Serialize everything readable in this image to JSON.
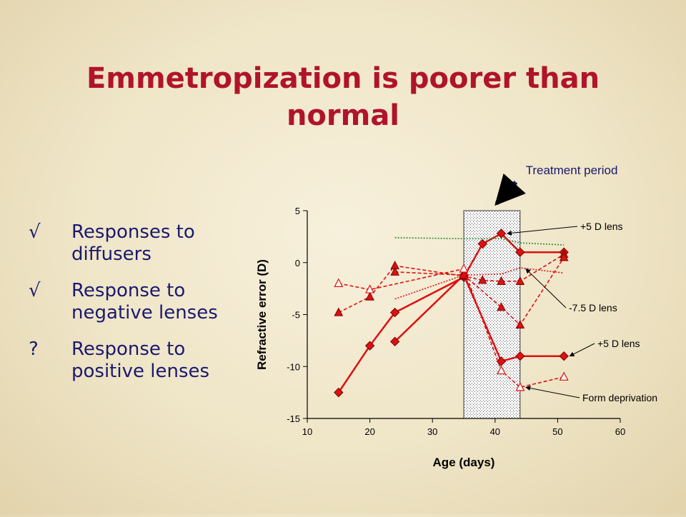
{
  "slide": {
    "title": "Emmetropization is poorer than normal",
    "bullets": [
      {
        "mark": "√",
        "text": "Responses to diffusers"
      },
      {
        "mark": "√",
        "text": "Response to negative lenses"
      },
      {
        "mark": "?",
        "text": "Response to positive lenses"
      }
    ]
  },
  "colors": {
    "title": "#b0142a",
    "bullet_text": "#1a1a6e",
    "series_red": "#dd1111",
    "series_green": "#2e8b2e",
    "treatment_fill": "#d8d8d8"
  },
  "chart_data": {
    "type": "line",
    "xlabel": "Age (days)",
    "ylabel": "Refractive error (D)",
    "xlim": [
      10,
      60
    ],
    "ylim": [
      -15,
      5
    ],
    "x_ticks": [
      10,
      20,
      30,
      40,
      50,
      60
    ],
    "y_ticks": [
      5,
      0,
      -5,
      -10,
      -15
    ],
    "treatment_period": {
      "label": "Treatment period",
      "x_start": 35,
      "x_end": 44
    },
    "annotations": [
      {
        "text": "+5 D lens",
        "points_to": [
          41,
          2.8
        ]
      },
      {
        "text": "-7.5 D lens",
        "points_to": [
          44,
          -0.6
        ]
      },
      {
        "text": "+5 D lens",
        "points_to": [
          51,
          -9
        ]
      },
      {
        "text": "Form deprivation",
        "points_to": [
          44,
          -12
        ]
      }
    ],
    "series": [
      {
        "marker": "diamond",
        "style": "solid",
        "color": "#dd1111",
        "points": [
          [
            15,
            -12.5
          ],
          [
            20,
            -8
          ],
          [
            24,
            -4.8
          ],
          [
            35,
            -1.4
          ],
          [
            38,
            1.8
          ],
          [
            41,
            2.8
          ],
          [
            44,
            1
          ],
          [
            51,
            1
          ]
        ]
      },
      {
        "marker": "diamond",
        "style": "solid",
        "color": "#dd1111",
        "points": [
          [
            24,
            -7.6
          ],
          [
            35,
            -1.2
          ],
          [
            41,
            -9.5
          ],
          [
            44,
            -9
          ],
          [
            51,
            -9
          ]
        ]
      },
      {
        "marker": "triangle-filled",
        "style": "dashed",
        "color": "#dd1111",
        "points": [
          [
            15,
            -4.8
          ],
          [
            20,
            -3.3
          ],
          [
            24,
            -0.3
          ],
          [
            35,
            -1.3
          ],
          [
            38,
            -1.7
          ],
          [
            41,
            -1.8
          ],
          [
            44,
            -1.8
          ],
          [
            51,
            0.8
          ]
        ]
      },
      {
        "marker": "triangle-filled",
        "style": "dashed",
        "color": "#dd1111",
        "points": [
          [
            24,
            -0.9
          ],
          [
            35,
            -1.2
          ],
          [
            41,
            -4.3
          ],
          [
            44,
            -6
          ],
          [
            51,
            0.5
          ]
        ]
      },
      {
        "marker": "triangle-open",
        "style": "dashed",
        "color": "#dd1111",
        "points": [
          [
            15,
            -2
          ],
          [
            20,
            -2.6
          ],
          [
            35,
            -0.6
          ],
          [
            41,
            -10.4
          ],
          [
            44,
            -12
          ],
          [
            51,
            -11
          ]
        ]
      },
      {
        "marker": "none",
        "style": "dotted",
        "color": "#dd1111",
        "points": [
          [
            24,
            -3.5
          ],
          [
            35,
            -1.2
          ],
          [
            41,
            -1.1
          ],
          [
            44,
            -0.5
          ],
          [
            51,
            -1
          ]
        ]
      },
      {
        "marker": "none",
        "style": "dotted",
        "color": "#2e8b2e",
        "points": [
          [
            24,
            2.4
          ],
          [
            35,
            2.3
          ],
          [
            41,
            2.3
          ],
          [
            44,
            1.9
          ],
          [
            51,
            1.7
          ]
        ]
      }
    ]
  }
}
